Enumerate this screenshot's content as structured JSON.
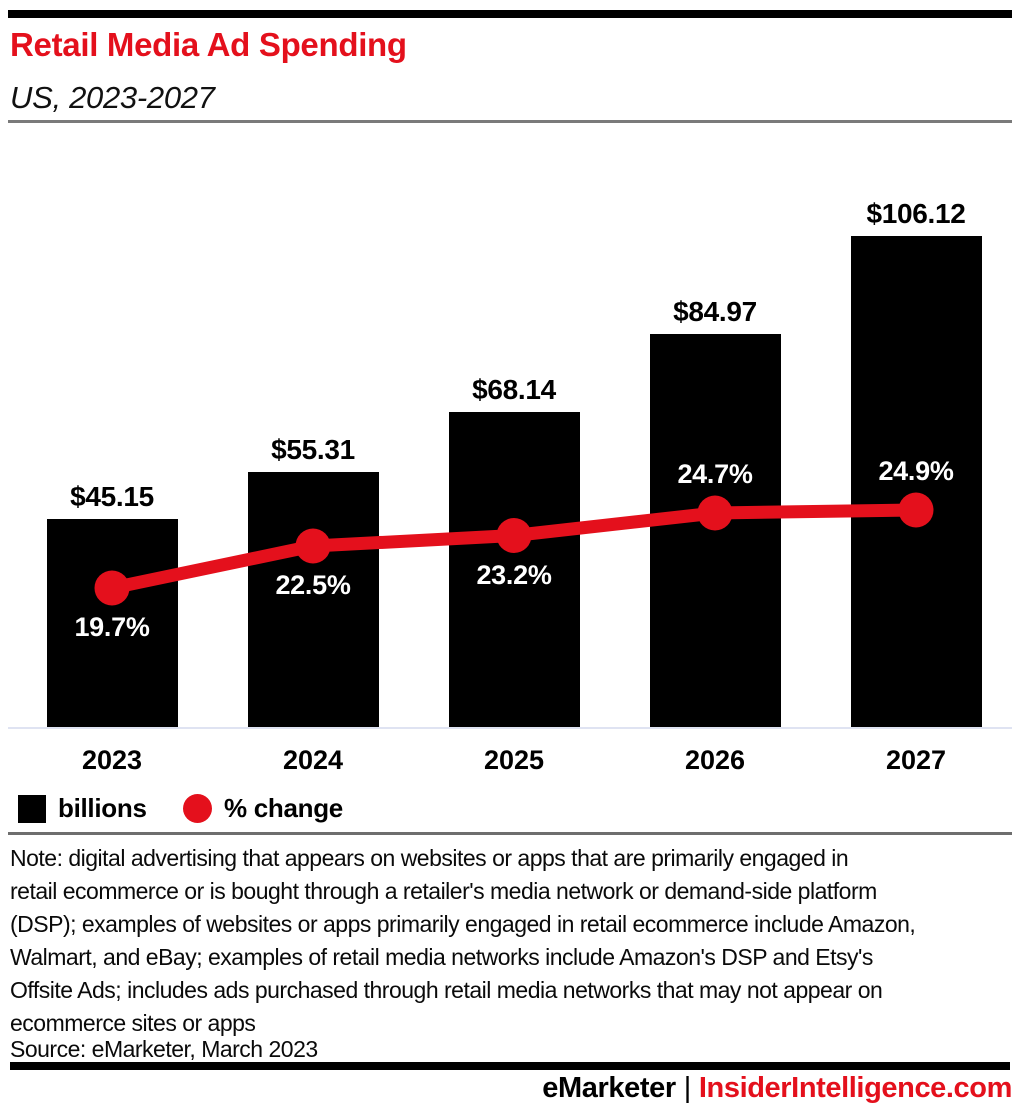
{
  "header": {
    "title": "Retail Media Ad Spending",
    "subtitle": "US, 2023-2027"
  },
  "colors": {
    "brand_red": "#e4101c",
    "bar_black": "#000000",
    "axis_line": "#dfe3f2",
    "rule_gray": "#6e6e6e"
  },
  "chart_data": {
    "type": "bar",
    "title": "Retail Media Ad Spending",
    "subtitle": "US, 2023-2027",
    "categories": [
      "2023",
      "2024",
      "2025",
      "2026",
      "2027"
    ],
    "series": [
      {
        "name": "billions",
        "type": "bar",
        "color": "#000000",
        "values": [
          45.15,
          55.31,
          68.14,
          84.97,
          106.12
        ],
        "labels": [
          "$45.15",
          "$55.31",
          "$68.14",
          "$84.97",
          "$106.12"
        ]
      },
      {
        "name": "% change",
        "type": "line",
        "color": "#e4101c",
        "values": [
          19.7,
          22.5,
          23.2,
          24.7,
          24.9
        ],
        "labels": [
          "19.7%",
          "22.5%",
          "23.2%",
          "24.7%",
          "24.9%"
        ],
        "label_positions": [
          "below",
          "below",
          "below",
          "above",
          "above"
        ]
      }
    ],
    "xlabel": "",
    "ylabel": "",
    "grid": false,
    "legend_position": "bottom-left"
  },
  "legend": {
    "items": [
      {
        "label": "billions",
        "swatch": "square",
        "color": "#000000"
      },
      {
        "label": "% change",
        "swatch": "circle",
        "color": "#e4101c"
      }
    ]
  },
  "note": {
    "lines": [
      "Note: digital advertising that appears on websites or apps that are primarily engaged in",
      "retail ecommerce or is bought through a retailer's media network or demand-side platform",
      "(DSP); examples of websites or apps primarily engaged in retail ecommerce include Amazon,",
      "Walmart, and eBay; examples of retail media networks include Amazon's DSP and Etsy's",
      "Offsite Ads; includes ads purchased through retail media networks that may not appear on",
      "ecommerce sites or apps"
    ],
    "source": "Source: eMarketer, March 2023"
  },
  "footer": {
    "brand": "eMarketer",
    "separator": "|",
    "site": "InsiderIntelligence.com"
  }
}
